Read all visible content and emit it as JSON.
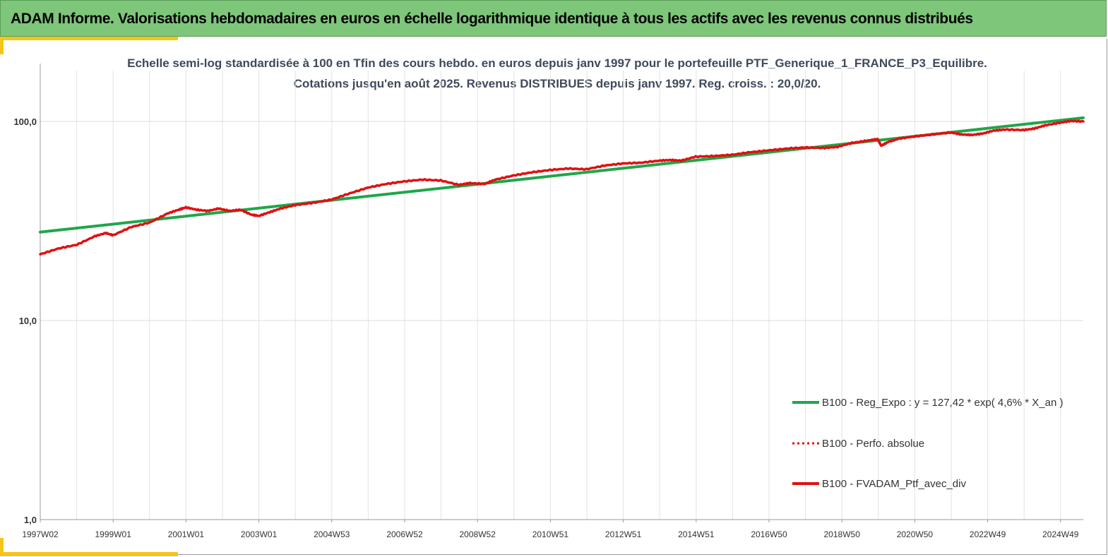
{
  "banner": {
    "title": "ADAM Informe. Valorisations hebdomadaires en euros en échelle logarithmique identique à tous les actifs avec les revenus connus distribués"
  },
  "colors": {
    "banner": "#7dc67a",
    "accent": "#f5c518",
    "regression": "#1fa64a",
    "portfolio": "#e01010"
  },
  "chart_data": {
    "type": "line",
    "title": "Echelle semi-log standardisée à 100 en Tfin des cours hebdo.  en euros depuis janv 1997 pour le portefeuille PTF_Generique_1_FRANCE_P3_Equilibre.",
    "subtitle": "Cotations jusqu'en août 2025. Revenus DISTRIBUES depuis janv 1997. Reg. croiss. : 20,0/20.",
    "y_scale": "log",
    "ylim": [
      1,
      180
    ],
    "grid": true,
    "legend_position": "right",
    "x_ticks": [
      "1997W02",
      "1999W01",
      "2001W01",
      "2003W01",
      "2004W53",
      "2006W52",
      "2008W52",
      "2010W51",
      "2012W51",
      "2014W51",
      "2016W50",
      "2018W50",
      "2020W50",
      "2022W49",
      "2024W49"
    ],
    "y_ticks": [
      "1,0",
      "10,0",
      "100,0"
    ],
    "y_tick_values": [
      1,
      10,
      100
    ],
    "x_range": [
      1997.0,
      2025.65
    ],
    "series": [
      {
        "name": "B100 - Reg_Expo : y = 127,42 * exp( 4,6% *  X_an )",
        "style": "solid",
        "color": "#1fa64a",
        "x": [
          1997.0,
          2025.65
        ],
        "y": [
          27.8,
          104.2
        ]
      },
      {
        "name": "B100 - Perfo. absolue",
        "style": "dotted",
        "color": "#e01010",
        "x": [],
        "y": []
      },
      {
        "name": "B100 - FVADAM_Ptf_avec_div",
        "style": "solid",
        "color": "#e01010",
        "x": [
          1997.0,
          1997.5,
          1998.0,
          1998.5,
          1998.8,
          1999.0,
          1999.5,
          2000.0,
          2000.5,
          2000.8,
          2001.0,
          2001.3,
          2001.6,
          2001.9,
          2002.2,
          2002.5,
          2002.8,
          2003.0,
          2003.3,
          2003.6,
          2004.0,
          2004.5,
          2005.0,
          2005.5,
          2006.0,
          2006.5,
          2007.0,
          2007.5,
          2008.0,
          2008.5,
          2008.8,
          2009.2,
          2009.5,
          2010.0,
          2010.5,
          2011.0,
          2011.5,
          2012.0,
          2012.5,
          2013.0,
          2013.5,
          2014.0,
          2014.3,
          2014.6,
          2015.0,
          2015.5,
          2016.0,
          2016.5,
          2017.0,
          2017.5,
          2018.0,
          2018.5,
          2018.9,
          2019.3,
          2019.7,
          2020.0,
          2020.1,
          2020.3,
          2020.6,
          2021.0,
          2021.5,
          2022.0,
          2022.3,
          2022.6,
          2022.9,
          2023.2,
          2023.5,
          2024.0,
          2024.3,
          2024.6,
          2025.0,
          2025.3,
          2025.65
        ],
        "y": [
          21.5,
          23.0,
          24.0,
          26.5,
          27.5,
          26.8,
          29.5,
          31.0,
          34.5,
          36.0,
          37.0,
          36.0,
          35.5,
          36.5,
          35.5,
          36.0,
          34.0,
          33.5,
          35.0,
          36.5,
          38.0,
          39.0,
          40.5,
          43.5,
          46.5,
          48.5,
          50.0,
          51.0,
          50.5,
          48.0,
          49.0,
          48.5,
          51.0,
          53.5,
          55.5,
          57.0,
          58.0,
          57.5,
          60.0,
          61.5,
          62.0,
          63.5,
          64.0,
          63.5,
          66.5,
          67.0,
          68.0,
          70.0,
          71.5,
          73.0,
          74.0,
          73.5,
          74.5,
          78.0,
          80.0,
          81.5,
          75.5,
          79.0,
          82.0,
          84.0,
          86.0,
          88.0,
          86.0,
          85.5,
          87.0,
          90.0,
          91.0,
          90.5,
          92.0,
          95.5,
          98.5,
          100.5,
          100.0
        ]
      }
    ]
  }
}
